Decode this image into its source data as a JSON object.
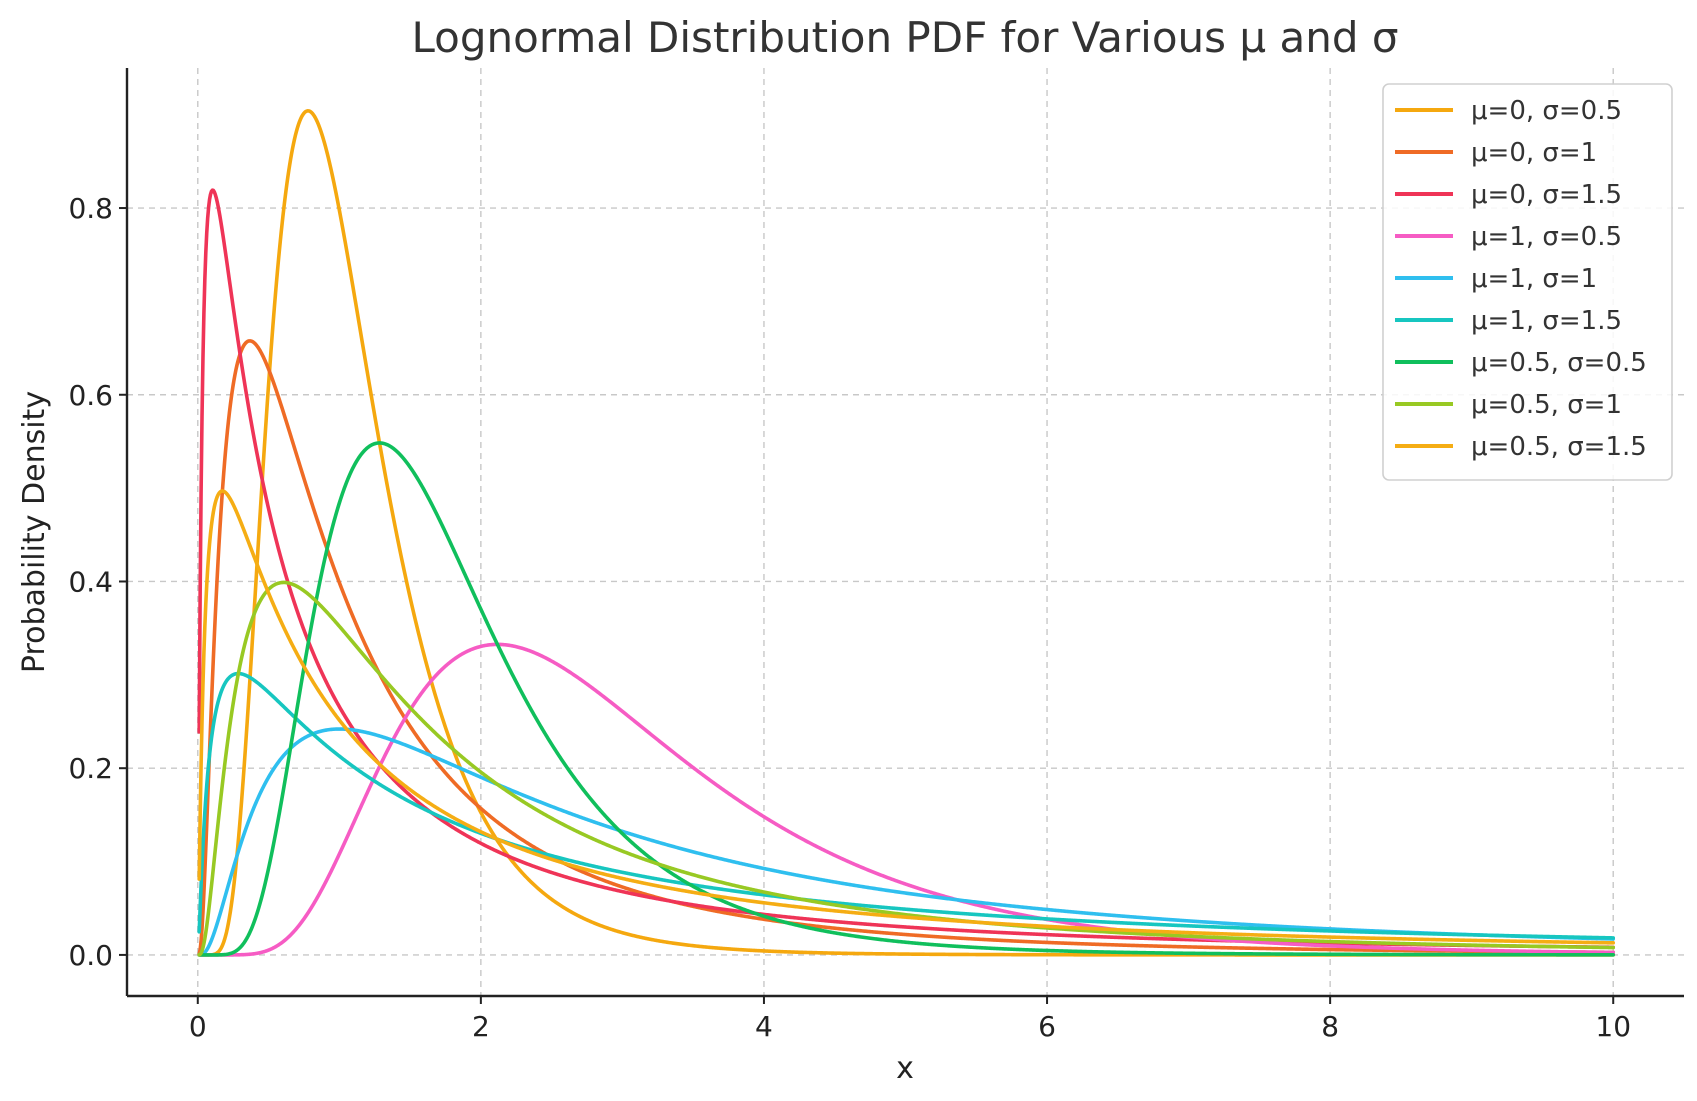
{
  "chart_data": {
    "type": "line",
    "title": "Lognormal Distribution PDF for Various μ and σ",
    "xlabel": "x",
    "ylabel": "Probability Density",
    "xlim": [
      -0.5,
      10.5
    ],
    "ylim": [
      -0.044,
      0.95
    ],
    "x_range": [
      0.01,
      10
    ],
    "xticks": [
      0,
      2,
      4,
      6,
      8,
      10
    ],
    "xtick_labels": [
      "0",
      "2",
      "4",
      "6",
      "8",
      "10"
    ],
    "yticks": [
      0.0,
      0.2,
      0.4,
      0.6,
      0.8
    ],
    "ytick_labels": [
      "0.0",
      "0.2",
      "0.4",
      "0.6",
      "0.8"
    ],
    "grid": true,
    "legend_position": "top-right",
    "series": [
      {
        "name": "μ=0, σ=0.5",
        "mu": 0,
        "sigma": 0.5,
        "color": "#f5a80f"
      },
      {
        "name": "μ=0, σ=1",
        "mu": 0,
        "sigma": 1,
        "color": "#ef6b25"
      },
      {
        "name": "μ=0, σ=1.5",
        "mu": 0,
        "sigma": 1.5,
        "color": "#ef3457"
      },
      {
        "name": "μ=1, σ=0.5",
        "mu": 1,
        "sigma": 0.5,
        "color": "#f65cc4"
      },
      {
        "name": "μ=1, σ=1",
        "mu": 1,
        "sigma": 1,
        "color": "#2fbfef"
      },
      {
        "name": "μ=1, σ=1.5",
        "mu": 1,
        "sigma": 1.5,
        "color": "#17c6c0"
      },
      {
        "name": "μ=0.5, σ=0.5",
        "mu": 0.5,
        "sigma": 0.5,
        "color": "#10bf5c"
      },
      {
        "name": "μ=0.5, σ=1",
        "mu": 0.5,
        "sigma": 1,
        "color": "#98c923"
      },
      {
        "name": "μ=0.5, σ=1.5",
        "mu": 0.5,
        "sigma": 1.5,
        "color": "#f5ad14"
      }
    ]
  }
}
